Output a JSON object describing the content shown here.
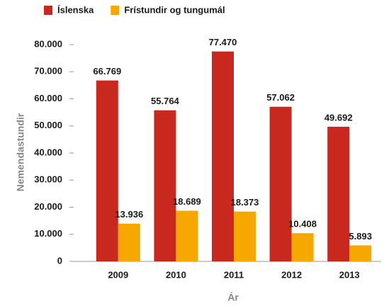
{
  "chart_data": {
    "type": "bar",
    "categories": [
      "2009",
      "2010",
      "2011",
      "2012",
      "2013"
    ],
    "series": [
      {
        "name": "Íslenska",
        "color": "#c8281e",
        "values": [
          66769,
          55764,
          77470,
          57062,
          49692
        ],
        "value_labels": [
          "66.769",
          "55.764",
          "77.470",
          "57.062",
          "49.692"
        ]
      },
      {
        "name": "Frístundir og tungumál",
        "color": "#f6a800",
        "values": [
          13936,
          18689,
          18373,
          10408,
          5893
        ],
        "value_labels": [
          "13.936",
          "18.689",
          "18.373",
          "10.408",
          "5.893"
        ]
      }
    ],
    "ylim": [
      0,
      80000
    ],
    "yticks": [
      0,
      {
        "value": 10000,
        "label": "10.000"
      },
      {
        "value": 20000,
        "label": "20.000"
      },
      {
        "value": 30000,
        "label": "30.000"
      },
      {
        "value": 40000,
        "label": "40.000"
      },
      {
        "value": 50000,
        "label": "50.000"
      },
      {
        "value": 60000,
        "label": "60.000"
      },
      {
        "value": 70000,
        "label": "70.000"
      },
      {
        "value": 80000,
        "label": "80.000"
      }
    ],
    "y_label": "Nemendastundir",
    "x_label": "Ár",
    "legend": "top"
  }
}
